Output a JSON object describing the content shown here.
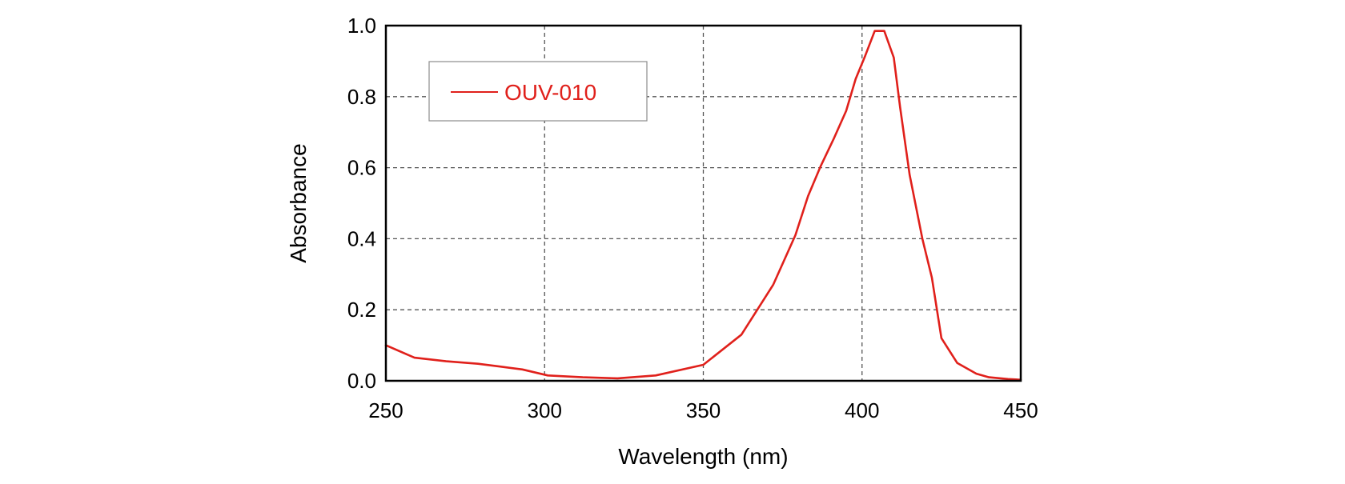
{
  "chart_data": {
    "type": "line",
    "xlabel": "Wavelength (nm)",
    "ylabel": "Absorbance",
    "xlim": [
      250,
      450
    ],
    "ylim": [
      0.0,
      1.0
    ],
    "xticks": [
      250,
      300,
      350,
      400,
      450
    ],
    "yticks": [
      0.0,
      0.2,
      0.4,
      0.6,
      0.8,
      1.0
    ],
    "xtick_labels": [
      "250",
      "300",
      "350",
      "400",
      "450"
    ],
    "ytick_labels": [
      "0.0",
      "0.2",
      "0.4",
      "0.6",
      "0.8",
      "1.0"
    ],
    "grid": true,
    "legend_position": "top-left",
    "series": [
      {
        "name": "OUV-010",
        "color": "#e0201b",
        "x": [
          250,
          259,
          269,
          279,
          286,
          293,
          301,
          312,
          323,
          335,
          350,
          362,
          372,
          379,
          383,
          387,
          391,
          395,
          398,
          401,
          404,
          406,
          407,
          410,
          412,
          415,
          419,
          422,
          425,
          430,
          436,
          440,
          446,
          450
        ],
        "y": [
          0.1,
          0.065,
          0.055,
          0.048,
          0.04,
          0.032,
          0.015,
          0.01,
          0.007,
          0.015,
          0.045,
          0.13,
          0.27,
          0.41,
          0.52,
          0.605,
          0.68,
          0.76,
          0.85,
          0.915,
          0.985,
          0.985,
          0.985,
          0.91,
          0.77,
          0.58,
          0.4,
          0.29,
          0.12,
          0.05,
          0.02,
          0.01,
          0.005,
          0.003
        ]
      }
    ]
  }
}
